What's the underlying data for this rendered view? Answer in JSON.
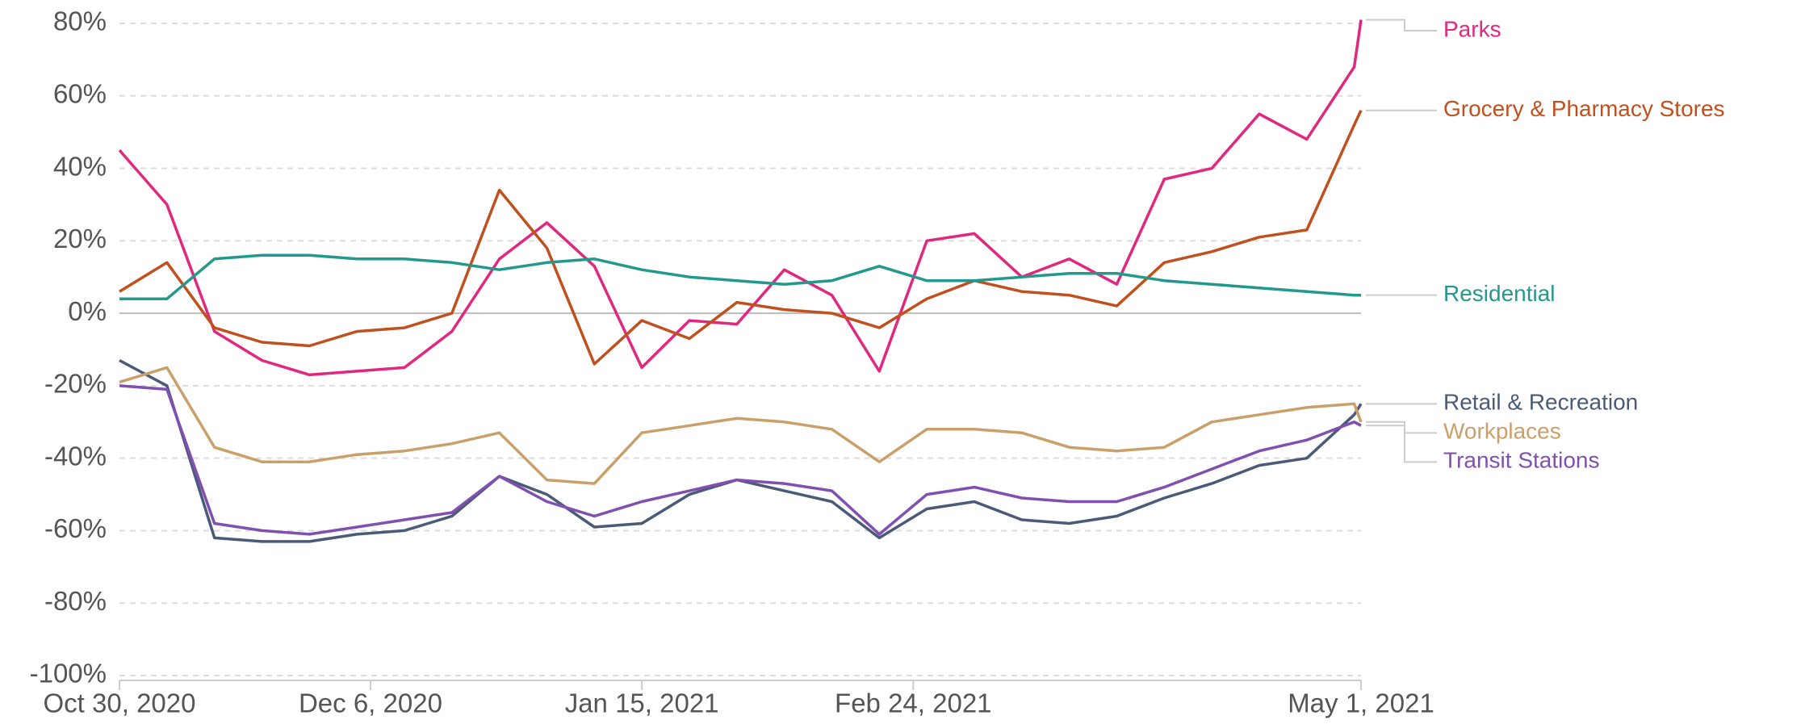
{
  "chart_data": {
    "type": "line",
    "x": [
      "2020-10-30",
      "2020-11-06",
      "2020-11-13",
      "2020-11-20",
      "2020-11-27",
      "2020-12-04",
      "2020-12-11",
      "2020-12-18",
      "2020-12-25",
      "2021-01-01",
      "2021-01-08",
      "2021-01-15",
      "2021-01-22",
      "2021-01-29",
      "2021-02-05",
      "2021-02-12",
      "2021-02-19",
      "2021-02-26",
      "2021-03-05",
      "2021-03-12",
      "2021-03-19",
      "2021-03-26",
      "2021-04-02",
      "2021-04-09",
      "2021-04-16",
      "2021-04-23",
      "2021-04-30",
      "2021-05-01"
    ],
    "series": [
      {
        "name": "Parks",
        "color": "#e0287f",
        "values": [
          45,
          30,
          -5,
          -13,
          -17,
          -16,
          -15,
          -5,
          15,
          25,
          13,
          -15,
          -2,
          -3,
          12,
          5,
          -16,
          20,
          22,
          10,
          15,
          8,
          37,
          40,
          55,
          48,
          68,
          81
        ]
      },
      {
        "name": "Grocery & Pharmacy Stores",
        "color": "#c0501e",
        "values": [
          6,
          14,
          -4,
          -8,
          -9,
          -5,
          -4,
          0,
          34,
          18,
          -14,
          -2,
          -7,
          3,
          1,
          0,
          -4,
          4,
          9,
          6,
          5,
          2,
          14,
          17,
          21,
          23,
          52,
          56
        ]
      },
      {
        "name": "Residential",
        "color": "#22998c",
        "values": [
          4,
          4,
          15,
          16,
          16,
          15,
          15,
          14,
          12,
          14,
          15,
          12,
          10,
          9,
          8,
          9,
          13,
          9,
          9,
          10,
          11,
          11,
          9,
          8,
          7,
          6,
          5,
          5
        ]
      },
      {
        "name": "Retail & Recreation",
        "color": "#4a5a78",
        "values": [
          -13,
          -20,
          -62,
          -63,
          -63,
          -61,
          -60,
          -56,
          -45,
          -50,
          -59,
          -58,
          -50,
          -46,
          -49,
          -52,
          -62,
          -54,
          -52,
          -57,
          -58,
          -56,
          -51,
          -47,
          -42,
          -40,
          -28,
          -25
        ]
      },
      {
        "name": "Transit Stations",
        "color": "#8050b0",
        "values": [
          -20,
          -21,
          -58,
          -60,
          -61,
          -59,
          -57,
          -55,
          -45,
          -52,
          -56,
          -52,
          -49,
          -46,
          -47,
          -49,
          -61,
          -50,
          -48,
          -51,
          -52,
          -52,
          -48,
          -43,
          -38,
          -35,
          -30,
          -31
        ]
      },
      {
        "name": "Workplaces",
        "color": "#c9a06a",
        "values": [
          -19,
          -15,
          -37,
          -41,
          -41,
          -39,
          -38,
          -36,
          -33,
          -46,
          -47,
          -33,
          -31,
          -29,
          -30,
          -32,
          -41,
          -32,
          -32,
          -33,
          -37,
          -38,
          -37,
          -30,
          -28,
          -26,
          -25,
          -30
        ]
      }
    ],
    "xlim": [
      "2020-10-30",
      "2021-05-01"
    ],
    "xticks": [
      {
        "value": "2020-10-30",
        "label": "Oct 30, 2020"
      },
      {
        "value": "2020-12-06",
        "label": "Dec 6, 2020"
      },
      {
        "value": "2021-01-15",
        "label": "Jan 15, 2021"
      },
      {
        "value": "2021-02-24",
        "label": "Feb 24, 2021"
      },
      {
        "value": "2021-05-01",
        "label": "May 1, 2021"
      }
    ],
    "ylim": [
      -100,
      80
    ],
    "yticks": [
      {
        "value": -100,
        "label": "-100%"
      },
      {
        "value": -80,
        "label": "-80%"
      },
      {
        "value": -60,
        "label": "-60%"
      },
      {
        "value": -40,
        "label": "-40%"
      },
      {
        "value": -20,
        "label": "-20%"
      },
      {
        "value": 0,
        "label": "0%"
      },
      {
        "value": 20,
        "label": "20%"
      },
      {
        "value": 40,
        "label": "40%"
      },
      {
        "value": 60,
        "label": "60%"
      },
      {
        "value": 80,
        "label": "80%"
      }
    ],
    "grid": true
  }
}
